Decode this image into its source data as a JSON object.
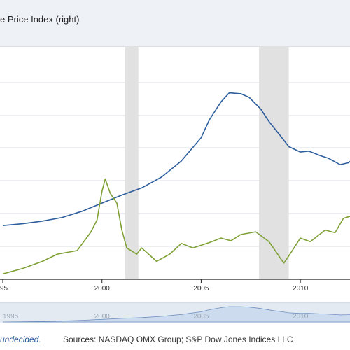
{
  "legend": {
    "right_series_label": "e Price Index (right)"
  },
  "footer": {
    "note": "undecided.",
    "sources": "Sources: NASDAQ OMX Group; S&P Dow Jones Indices LLC"
  },
  "colors": {
    "hpi": "#2c5d9c",
    "nasdaq": "#7ea035",
    "recession": "#e1e1e1",
    "grid": "#d9dde3",
    "navigator_fill": "#cddbee",
    "navigator_bg": "#e4eaf2"
  },
  "chart_data": {
    "type": "line",
    "title": "",
    "xlabel": "",
    "ylabel": "",
    "x_ticks": [
      "95",
      "2000",
      "2005",
      "2010"
    ],
    "navigator_ticks": [
      "1995",
      "2000",
      "2005",
      "2010"
    ],
    "recessions": [
      [
        "2001-03",
        "2001-11"
      ],
      [
        "2007-12",
        "2009-06"
      ]
    ],
    "series": [
      {
        "name": "",
        "x": [
          "1995-01",
          "1996-01",
          "1997-01",
          "1998-01",
          "1999-01",
          "2000-01",
          "2001-01",
          "2002-01",
          "2003-01",
          "2004-01",
          "2005-01",
          "2005-06",
          "2006-01",
          "2006-06",
          "2007-01",
          "2007-06",
          "2008-01",
          "2008-06",
          "2009-01",
          "2009-06",
          "2010-01",
          "2010-06",
          "2011-01",
          "2011-06",
          "2012-01",
          "2012-06",
          "2013-01"
        ],
        "values": [
          0.8,
          0.82,
          0.85,
          0.89,
          0.96,
          1.05,
          1.14,
          1.22,
          1.34,
          1.52,
          1.78,
          1.98,
          2.18,
          2.28,
          2.27,
          2.23,
          2.1,
          1.96,
          1.8,
          1.68,
          1.62,
          1.63,
          1.58,
          1.55,
          1.48,
          1.5,
          1.6
        ]
      },
      {
        "name": "",
        "x": [
          "1995-01",
          "1996-01",
          "1997-01",
          "1997-10",
          "1998-10",
          "1999-06",
          "1999-10",
          "2000-01",
          "2000-03",
          "2000-06",
          "2000-10",
          "2001-01",
          "2001-04",
          "2001-10",
          "2002-01",
          "2002-10",
          "2003-06",
          "2004-01",
          "2004-08",
          "2005-06",
          "2006-01",
          "2006-07",
          "2007-01",
          "2007-10",
          "2008-06",
          "2009-03",
          "2009-06",
          "2010-01",
          "2010-07",
          "2011-04",
          "2011-10",
          "2012-03",
          "2012-10",
          "2013-01"
        ],
        "values": [
          0.26,
          0.32,
          0.4,
          0.48,
          0.52,
          0.72,
          0.86,
          1.18,
          1.32,
          1.16,
          1.05,
          0.75,
          0.55,
          0.48,
          0.55,
          0.4,
          0.48,
          0.6,
          0.55,
          0.61,
          0.66,
          0.63,
          0.7,
          0.73,
          0.62,
          0.38,
          0.46,
          0.66,
          0.62,
          0.75,
          0.72,
          0.88,
          0.92,
          1.0
        ]
      }
    ]
  }
}
